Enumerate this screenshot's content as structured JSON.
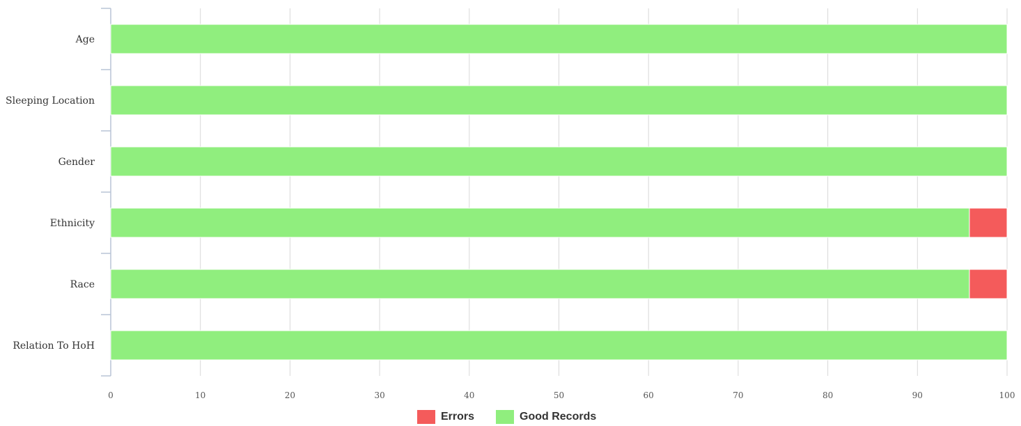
{
  "chart_data": {
    "type": "bar",
    "orientation": "horizontal",
    "stacked": true,
    "categories": [
      "Age",
      "Sleeping Location",
      "Gender",
      "Ethnicity",
      "Race",
      "Relation To HoH"
    ],
    "series": [
      {
        "name": "Good Records",
        "color": "#90ee7e",
        "values": [
          100,
          100,
          100,
          95.8,
          95.8,
          100
        ]
      },
      {
        "name": "Errors",
        "color": "#f45b5b",
        "values": [
          0,
          0,
          0,
          4.2,
          4.2,
          0
        ]
      }
    ],
    "x_ticks": [
      "0",
      "10",
      "20",
      "30",
      "40",
      "50",
      "60",
      "70",
      "80",
      "90",
      "100"
    ],
    "xlim": [
      0,
      100
    ],
    "grid": true,
    "legend_position": "bottom-center"
  },
  "legend": [
    {
      "label": "Errors",
      "color": "#f45b5b"
    },
    {
      "label": "Good Records",
      "color": "#90ee7e"
    }
  ]
}
